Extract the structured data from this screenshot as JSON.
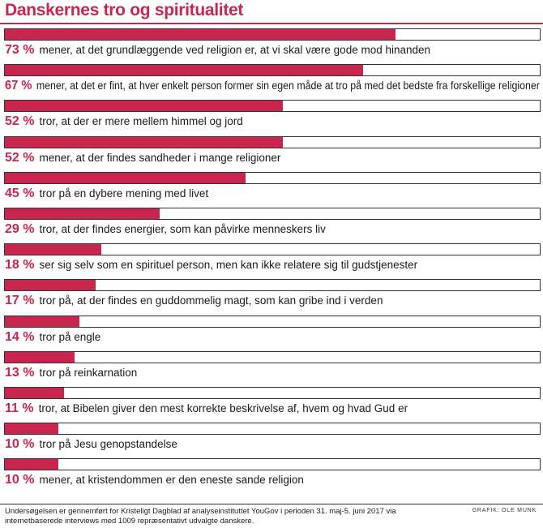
{
  "title": "Danskernes tro og spiritualitet",
  "footnote": "Undersøgelsen er gennemført for Kristeligt Dagblad af analyseinstituttet YouGov i perioden 31. maj-5. juni 2017 via internetbaserede interviews med 1009 repræsentativt udvalgte danskere.",
  "credit": "GRAFIK: OLE MUNK",
  "colors": {
    "accent": "#c8264f",
    "track_border": "#333333",
    "text": "#1a1a1a"
  },
  "chart_data": {
    "type": "bar",
    "orientation": "horizontal",
    "title": "Danskernes tro og spiritualitet",
    "xlim": [
      0,
      100
    ],
    "unit": "%",
    "categories": [
      "mener, at det grundlæggende ved religion er, at vi skal være gode mod hinanden",
      "mener, at det er fint, at hver enkelt person former sin egen måde at tro på med det bedste fra forskellige religioner",
      "tror, at der er mere mellem himmel og jord",
      "mener, at der findes sandheder i mange religioner",
      "tror på en dybere mening med livet",
      "tror, at der findes energier, som kan påvirke menneskers liv",
      "ser sig selv som en spirituel person, men kan ikke relatere sig til gudstjenester",
      "tror på, at der findes en guddommelig magt, som kan gribe ind i verden",
      "tror på engle",
      "tror på reinkarnation",
      "tror, at Bibelen giver den mest korrekte beskrivelse af, hvem og hvad Gud er",
      "tror på Jesu genopstandelse",
      "mener, at kristendommen er den eneste sande religion"
    ],
    "values": [
      73,
      67,
      52,
      52,
      45,
      29,
      18,
      17,
      14,
      13,
      11,
      10,
      10
    ],
    "value_labels": [
      "73 %",
      "67 %",
      "52 %",
      "52 %",
      "45 %",
      "29 %",
      "18 %",
      "17 %",
      "14 %",
      "13 %",
      "11 %",
      "10 %",
      "10 %"
    ]
  }
}
